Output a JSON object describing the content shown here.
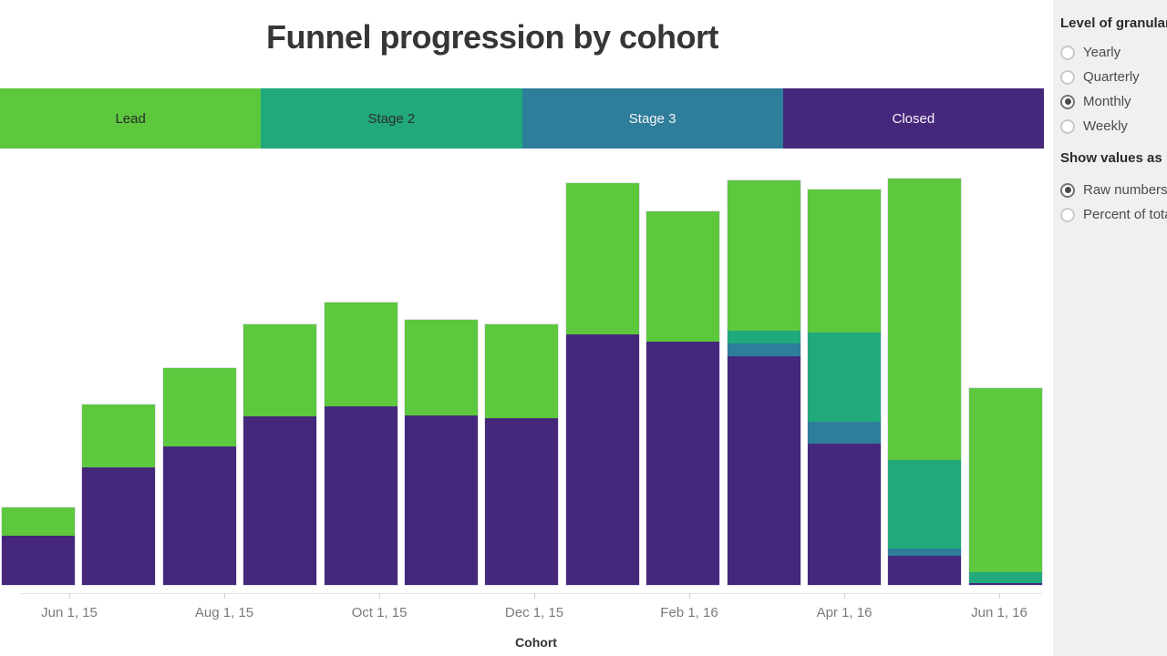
{
  "title": "Funnel progression by cohort",
  "colors": {
    "series": {
      "Lead": "#5dc73e",
      "Stage 2": "#21a97c",
      "Stage 3": "#2e7d9b",
      "Closed": "#45287b"
    },
    "legend_dark_text": "#2b2b2b",
    "legend_light_text": "#f5f3f8",
    "sidebar_bg": "#f0f0f0",
    "axis_line": "#e2e2e2",
    "axis_label": "#7a7a7a"
  },
  "legend": {
    "items": [
      {
        "label": "Lead",
        "series": "Lead",
        "text": "dark"
      },
      {
        "label": "Stage 2",
        "series": "Stage 2",
        "text": "dark"
      },
      {
        "label": "Stage 3",
        "series": "Stage 3",
        "text": "light"
      },
      {
        "label": "Closed",
        "series": "Closed",
        "text": "light"
      }
    ]
  },
  "chart_data": {
    "type": "bar",
    "subtype": "stacked-vertical",
    "title": "Funnel progression by cohort",
    "xlabel": "Cohort",
    "ylabel": "",
    "y_axis_visible": false,
    "values_unit": "relative-pixels",
    "categories": [
      "Jun 15",
      "Jul 15",
      "Aug 15",
      "Sep 15",
      "Oct 15",
      "Nov 15",
      "Dec 15",
      "Jan 16",
      "Feb 16",
      "Mar 16",
      "Apr 16",
      "May 16",
      "Jun 16"
    ],
    "x_tick_labels": [
      "Jun 1, 15",
      "Aug 1, 15",
      "Oct 1, 15",
      "Dec 1, 15",
      "Feb 1, 16",
      "Apr 1, 16",
      "Jun 1, 16"
    ],
    "series": [
      {
        "name": "Lead",
        "values": [
          31,
          69,
          86,
          101,
          114,
          105,
          103,
          166,
          143,
          165,
          157,
          309,
          202
        ]
      },
      {
        "name": "Stage 2",
        "values": [
          0,
          0,
          0,
          0,
          0,
          0,
          0,
          0,
          0,
          14,
          98,
          97,
          12
        ]
      },
      {
        "name": "Stage 3",
        "values": [
          0,
          0,
          0,
          0,
          0,
          0,
          0,
          0,
          0,
          14,
          24,
          8,
          0
        ]
      },
      {
        "name": "Closed",
        "values": [
          54,
          129,
          152,
          185,
          196,
          186,
          183,
          275,
          267,
          251,
          155,
          32,
          2
        ]
      }
    ],
    "totals": [
      85,
      198,
      238,
      286,
      310,
      291,
      286,
      441,
      410,
      444,
      434,
      446,
      216
    ],
    "legend_position": "top-strip",
    "grid": false
  },
  "sidebar": {
    "granularity": {
      "label": "Level of granularity",
      "options": [
        {
          "label": "Yearly",
          "selected": false
        },
        {
          "label": "Quarterly",
          "selected": false
        },
        {
          "label": "Monthly",
          "selected": true
        },
        {
          "label": "Weekly",
          "selected": false
        }
      ]
    },
    "show_values": {
      "label": "Show values as",
      "options": [
        {
          "label": "Raw numbers",
          "selected": true
        },
        {
          "label": "Percent of total",
          "selected": false
        }
      ]
    }
  },
  "axis": {
    "label": "Cohort"
  }
}
